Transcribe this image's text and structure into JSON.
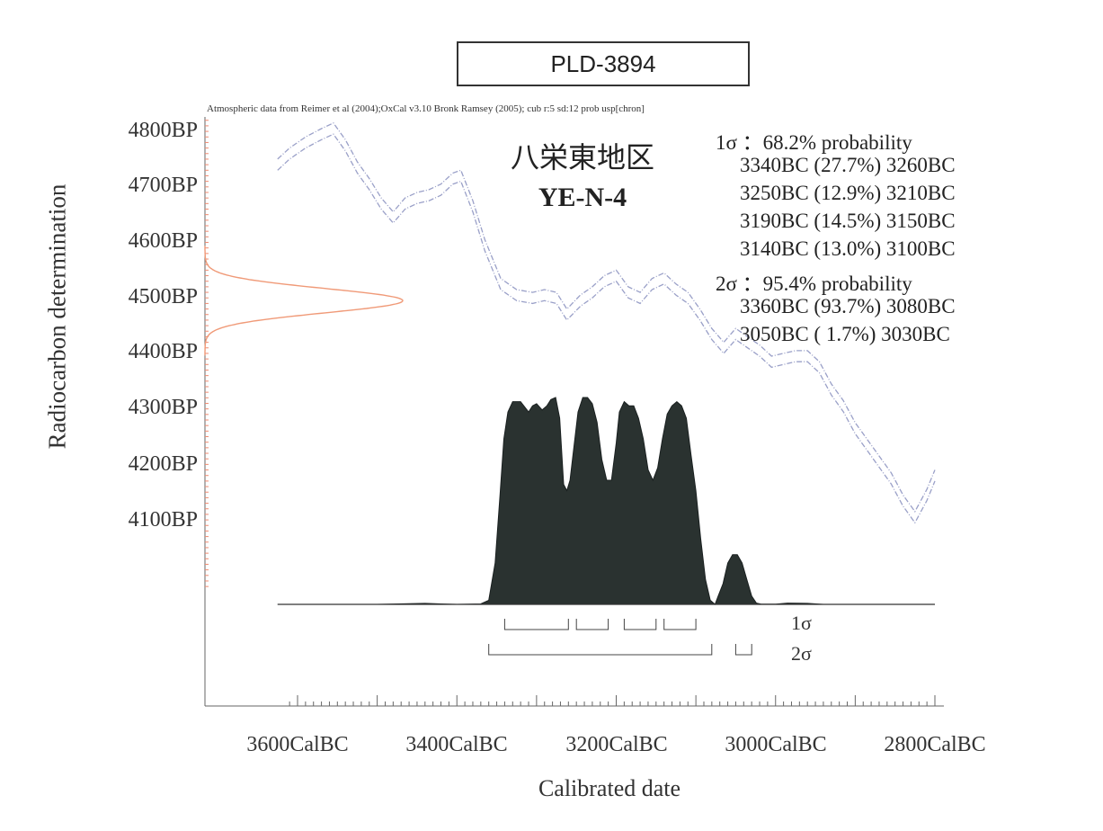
{
  "chart_data": {
    "type": "area",
    "title": "PLD-3894",
    "subtitle": "Atmospheric data from Reimer et al (2004);OxCal v3.10 Bronk Ramsey (2005); cub r:5 sd:12 prob usp[chron]",
    "site_name": "八栄東地区",
    "sample_id": "YE-N-4",
    "xlabel": "Calibrated date",
    "ylabel": "Radiocarbon determination",
    "x_ticks": [
      "3600CalBC",
      "3400CalBC",
      "3200CalBC",
      "3000CalBC",
      "2800CalBC"
    ],
    "x_tick_values": [
      3600,
      3400,
      3200,
      3000,
      2800
    ],
    "y_ticks": [
      "4800BP",
      "4700BP",
      "4600BP",
      "4500BP",
      "4400BP",
      "4300BP",
      "4200BP",
      "4100BP"
    ],
    "y_tick_values": [
      4800,
      4700,
      4600,
      4500,
      4400,
      4300,
      4200,
      4100
    ],
    "xlim": [
      3615,
      2800
    ],
    "ylim": [
      3975,
      4820
    ],
    "radiocarbon_age": {
      "mean": 4490,
      "sd": 22
    },
    "calibration_curve": {
      "x": [
        3625,
        3610,
        3590,
        3570,
        3555,
        3540,
        3525,
        3510,
        3495,
        3480,
        3465,
        3450,
        3435,
        3420,
        3405,
        3395,
        3380,
        3365,
        3345,
        3325,
        3305,
        3290,
        3275,
        3262,
        3245,
        3230,
        3215,
        3200,
        3185,
        3170,
        3155,
        3140,
        3125,
        3110,
        3095,
        3080,
        3065,
        3050,
        3035,
        3020,
        3005,
        2990,
        2975,
        2960,
        2945,
        2930,
        2915,
        2900,
        2885,
        2870,
        2855,
        2840,
        2825,
        2810,
        2800
      ],
      "y": [
        4735,
        4755,
        4775,
        4790,
        4800,
        4770,
        4730,
        4700,
        4665,
        4640,
        4665,
        4675,
        4680,
        4690,
        4710,
        4715,
        4660,
        4590,
        4520,
        4500,
        4495,
        4500,
        4495,
        4465,
        4490,
        4505,
        4525,
        4535,
        4505,
        4495,
        4520,
        4530,
        4510,
        4495,
        4465,
        4430,
        4405,
        4430,
        4415,
        4400,
        4380,
        4385,
        4390,
        4390,
        4370,
        4330,
        4300,
        4260,
        4230,
        4200,
        4170,
        4130,
        4100,
        4140,
        4175
      ],
      "band": 10
    },
    "probability_distribution": {
      "x": [
        3625,
        3500,
        3440,
        3420,
        3400,
        3370,
        3360,
        3352,
        3346,
        3341,
        3336,
        3330,
        3320,
        3310,
        3305,
        3300,
        3293,
        3287,
        3282,
        3276,
        3271,
        3266,
        3262,
        3258,
        3254,
        3248,
        3242,
        3236,
        3230,
        3224,
        3218,
        3212,
        3206,
        3200,
        3196,
        3190,
        3184,
        3178,
        3172,
        3166,
        3160,
        3154,
        3148,
        3142,
        3136,
        3130,
        3124,
        3118,
        3112,
        3106,
        3100,
        3094,
        3088,
        3082,
        3076,
        3072,
        3066,
        3060,
        3054,
        3048,
        3042,
        3036,
        3030,
        3024,
        3018,
        3000,
        2985,
        2960,
        2940,
        2800
      ],
      "y": [
        0,
        0,
        0.005,
        0.002,
        0,
        0.002,
        0.02,
        0.2,
        0.52,
        0.8,
        0.93,
        0.98,
        0.98,
        0.93,
        0.96,
        0.97,
        0.94,
        0.96,
        0.99,
        1.0,
        0.9,
        0.58,
        0.55,
        0.6,
        0.73,
        0.93,
        1.0,
        1.0,
        0.97,
        0.88,
        0.7,
        0.6,
        0.6,
        0.78,
        0.93,
        0.98,
        0.96,
        0.96,
        0.9,
        0.8,
        0.65,
        0.6,
        0.66,
        0.8,
        0.92,
        0.96,
        0.98,
        0.96,
        0.9,
        0.72,
        0.55,
        0.32,
        0.12,
        0.02,
        0.0,
        0.04,
        0.1,
        0.2,
        0.24,
        0.24,
        0.2,
        0.12,
        0.04,
        0.006,
        0.001,
        0.001,
        0.006,
        0.005,
        0,
        0
      ]
    },
    "one_sigma_ranges": [
      [
        3340,
        3260
      ],
      [
        3250,
        3210
      ],
      [
        3190,
        3150
      ],
      [
        3140,
        3100
      ]
    ],
    "two_sigma_ranges": [
      [
        3360,
        3080
      ],
      [
        3050,
        3030
      ]
    ],
    "one_sigma_label": "1σ",
    "two_sigma_label": "2σ",
    "grid": false,
    "colors": {
      "curve": "#9aa0c8",
      "distribution": "#2a3230",
      "bp_distribution": "#f09a78",
      "axis": "#555555",
      "tick_ticks": "#f08a70"
    }
  },
  "probabilities": {
    "one_sigma_header": "1σ ：68.2% probability",
    "one_sigma_lines": [
      "3340BC (27.7%) 3260BC",
      "3250BC (12.9%) 3210BC",
      "3190BC (14.5%) 3150BC",
      "3140BC (13.0%) 3100BC"
    ],
    "two_sigma_header": "2σ ：95.4% probability",
    "two_sigma_lines": [
      "3360BC (93.7%) 3080BC",
      "3050BC ( 1.7%) 3030BC"
    ]
  }
}
